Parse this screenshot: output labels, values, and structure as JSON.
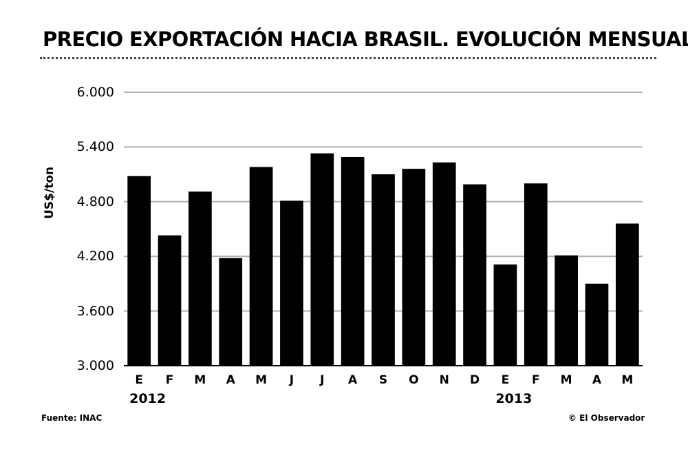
{
  "chart_data": {
    "type": "bar",
    "title": "PRECIO EXPORTACIÓN HACIA BRASIL. EVOLUCIÓN MENSUAL",
    "ylabel": "US$/ton",
    "xlabel": "",
    "ylim": [
      3000,
      6000
    ],
    "yticks": [
      "6.000",
      "5.400",
      "4.800",
      "4.200",
      "3.600",
      "3.000"
    ],
    "ytick_values": [
      6000,
      5400,
      4800,
      4200,
      3600,
      3000
    ],
    "categories": [
      "E",
      "F",
      "M",
      "A",
      "M",
      "J",
      "J",
      "A",
      "S",
      "O",
      "N",
      "D",
      "E",
      "F",
      "M",
      "A",
      "M"
    ],
    "values": [
      5080,
      4430,
      4910,
      4180,
      5180,
      4810,
      5330,
      5290,
      5100,
      5160,
      5230,
      4990,
      4110,
      5000,
      4210,
      3900,
      4560
    ],
    "grid": true,
    "bar_color": "#000000",
    "years": [
      {
        "label": "2012",
        "start_index": 0
      },
      {
        "label": "2013",
        "start_index": 12
      }
    ]
  },
  "footer": {
    "source": "Fuente: INAC",
    "credit": "© El Observador"
  }
}
